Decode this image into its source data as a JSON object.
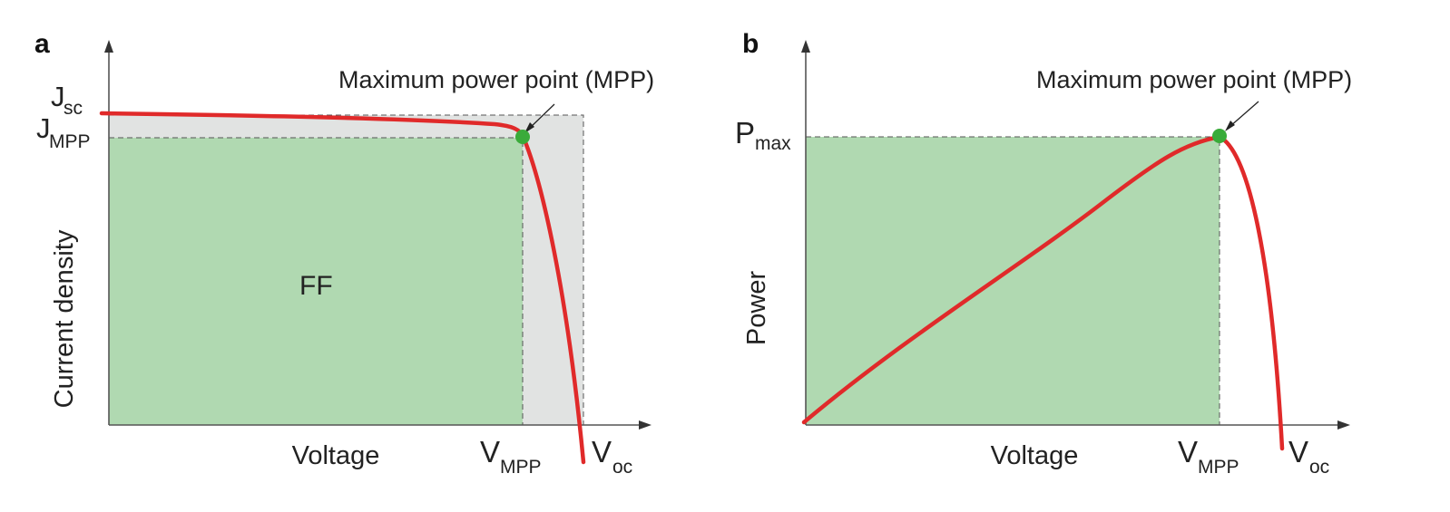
{
  "panel_a": {
    "letter": "a",
    "annotation": "Maximum power point (MPP)",
    "area_label": "FF",
    "y_axis_label": "Current density",
    "x_axis_label": "Voltage",
    "jsc_main": "J",
    "jsc_sub": "sc",
    "jmpp_main": "J",
    "jmpp_sub": "MPP",
    "vmpp_main": "V",
    "vmpp_sub": "MPP",
    "voc_main": "V",
    "voc_sub": "oc"
  },
  "panel_b": {
    "letter": "b",
    "annotation": "Maximum power point (MPP)",
    "y_axis_label": "Power",
    "x_axis_label": "Voltage",
    "pmax_main": "P",
    "pmax_sub": "max",
    "vmpp_main": "V",
    "vmpp_sub": "MPP",
    "voc_main": "V",
    "voc_sub": "oc"
  },
  "colors": {
    "curve": "#e02a2a",
    "mpp_dot": "#3aab3a",
    "ff_area": "#b0d9b1",
    "outer_area": "#e1e3e2",
    "axis": "#555555",
    "dashed": "#555555"
  },
  "chart_data": [
    {
      "type": "line",
      "panel": "a",
      "xlabel": "Voltage",
      "ylabel": "Current density",
      "series": [
        {
          "x": [
            0,
            0.2,
            0.4,
            0.6,
            0.75,
            0.82,
            0.87,
            0.897,
            0.935,
            0.96,
            0.99,
            1.0
          ],
          "y": [
            1.0,
            0.995,
            0.99,
            0.984,
            0.975,
            0.965,
            0.955,
            0.93,
            0.75,
            0.5,
            0.1,
            0.0
          ]
        }
      ],
      "points": [
        {
          "name": "Maximum power point (MPP)",
          "x": 0.897,
          "y": 0.93
        }
      ]
    },
    {
      "type": "line",
      "panel": "b",
      "xlabel": "Voltage",
      "ylabel": "Power",
      "series": [
        {
          "x": [
            0,
            0.15,
            0.35,
            0.55,
            0.7,
            0.78,
            0.83,
            0.868,
            0.89,
            0.92,
            0.955,
            0.99
          ],
          "y": [
            0.0,
            0.2,
            0.44,
            0.67,
            0.84,
            0.93,
            0.98,
            1.0,
            0.93,
            0.7,
            0.4,
            0.0
          ]
        }
      ],
      "points": [
        {
          "name": "Maximum power point (MPP)",
          "x": 0.868,
          "y": 1.0
        }
      ]
    }
  ]
}
